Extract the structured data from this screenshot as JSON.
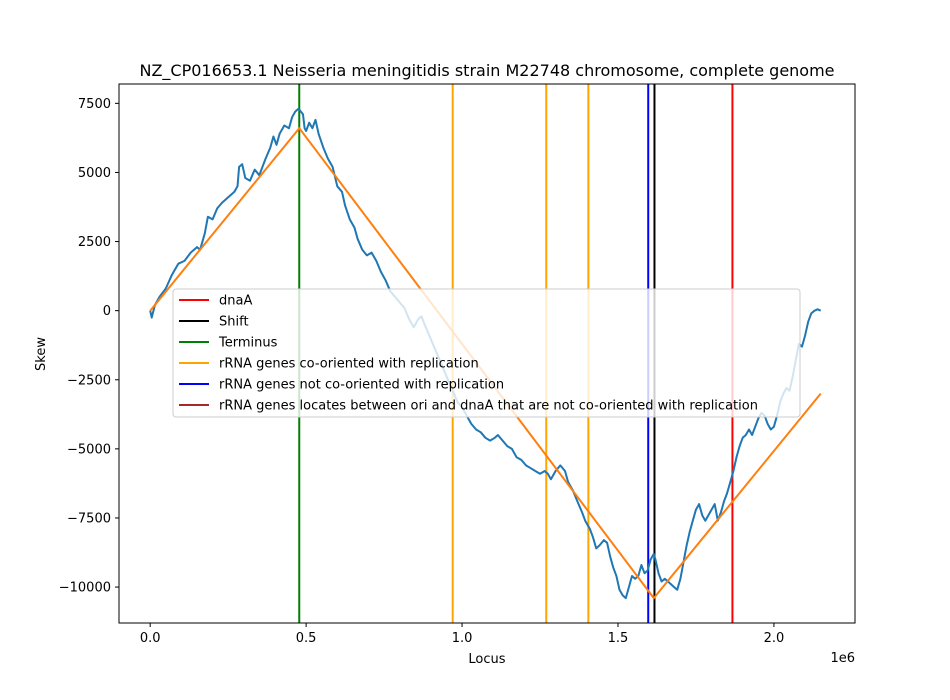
{
  "chart_data": {
    "type": "line",
    "title": "NZ_CP016653.1 Neisseria meningitidis strain M22748 chromosome, complete genome",
    "xlabel": "Locus",
    "ylabel": "Skew",
    "x_offset_text": "1e6",
    "xlim": [
      -100000,
      2260000
    ],
    "ylim": [
      -11300,
      8200
    ],
    "x_ticks": [
      {
        "value": 0,
        "label": "0.0"
      },
      {
        "value": 500000,
        "label": "0.5"
      },
      {
        "value": 1000000,
        "label": "1.0"
      },
      {
        "value": 1500000,
        "label": "1.5"
      },
      {
        "value": 2000000,
        "label": "2.0"
      }
    ],
    "y_ticks": [
      {
        "value": 7500,
        "label": "7500"
      },
      {
        "value": 5000,
        "label": "5000"
      },
      {
        "value": 2500,
        "label": "2500"
      },
      {
        "value": 0,
        "label": "0"
      },
      {
        "value": -2500,
        "label": "−2500"
      },
      {
        "value": -5000,
        "label": "−5000"
      },
      {
        "value": -7500,
        "label": "−7500"
      },
      {
        "value": -10000,
        "label": "−10000"
      }
    ],
    "grid": false,
    "legend_position": "center-right",
    "series": [
      {
        "name": "",
        "color": "#1f77b4",
        "points": [
          [
            0,
            0
          ],
          [
            5000,
            -250
          ],
          [
            15000,
            200
          ],
          [
            30000,
            500
          ],
          [
            50000,
            800
          ],
          [
            70000,
            1300
          ],
          [
            90000,
            1700
          ],
          [
            110000,
            1800
          ],
          [
            130000,
            2100
          ],
          [
            150000,
            2300
          ],
          [
            160000,
            2200
          ],
          [
            175000,
            2800
          ],
          [
            185000,
            3400
          ],
          [
            200000,
            3300
          ],
          [
            215000,
            3700
          ],
          [
            230000,
            3900
          ],
          [
            250000,
            4100
          ],
          [
            270000,
            4300
          ],
          [
            280000,
            4500
          ],
          [
            285000,
            5200
          ],
          [
            295000,
            5300
          ],
          [
            305000,
            4800
          ],
          [
            320000,
            4700
          ],
          [
            335000,
            5100
          ],
          [
            350000,
            4900
          ],
          [
            370000,
            5500
          ],
          [
            385000,
            5900
          ],
          [
            395000,
            6300
          ],
          [
            405000,
            6000
          ],
          [
            415000,
            6400
          ],
          [
            430000,
            6700
          ],
          [
            445000,
            6600
          ],
          [
            455000,
            7000
          ],
          [
            465000,
            7200
          ],
          [
            475000,
            7300
          ],
          [
            480000,
            7250
          ],
          [
            490000,
            7100
          ],
          [
            495000,
            6600
          ],
          [
            500000,
            6500
          ],
          [
            510000,
            6800
          ],
          [
            520000,
            6600
          ],
          [
            530000,
            6900
          ],
          [
            540000,
            6400
          ],
          [
            555000,
            5900
          ],
          [
            570000,
            5500
          ],
          [
            585000,
            5200
          ],
          [
            600000,
            4500
          ],
          [
            615000,
            4300
          ],
          [
            625000,
            3800
          ],
          [
            640000,
            3300
          ],
          [
            655000,
            3000
          ],
          [
            665000,
            2600
          ],
          [
            680000,
            2200
          ],
          [
            695000,
            2000
          ],
          [
            710000,
            2100
          ],
          [
            725000,
            1800
          ],
          [
            740000,
            1400
          ],
          [
            755000,
            1100
          ],
          [
            770000,
            700
          ],
          [
            785000,
            500
          ],
          [
            800000,
            300
          ],
          [
            815000,
            100
          ],
          [
            830000,
            -300
          ],
          [
            845000,
            -600
          ],
          [
            860000,
            -300
          ],
          [
            870000,
            -200
          ],
          [
            880000,
            -500
          ],
          [
            895000,
            -900
          ],
          [
            910000,
            -1300
          ],
          [
            925000,
            -1700
          ],
          [
            940000,
            -2100
          ],
          [
            955000,
            -2500
          ],
          [
            970000,
            -2900
          ],
          [
            985000,
            -3300
          ],
          [
            1000000,
            -3500
          ],
          [
            1015000,
            -3800
          ],
          [
            1030000,
            -4100
          ],
          [
            1045000,
            -4300
          ],
          [
            1060000,
            -4400
          ],
          [
            1075000,
            -4600
          ],
          [
            1090000,
            -4700
          ],
          [
            1105000,
            -4600
          ],
          [
            1115000,
            -4500
          ],
          [
            1130000,
            -4700
          ],
          [
            1145000,
            -4900
          ],
          [
            1160000,
            -5000
          ],
          [
            1175000,
            -5300
          ],
          [
            1190000,
            -5400
          ],
          [
            1205000,
            -5600
          ],
          [
            1220000,
            -5700
          ],
          [
            1235000,
            -5800
          ],
          [
            1250000,
            -5900
          ],
          [
            1265000,
            -5800
          ],
          [
            1275000,
            -5900
          ],
          [
            1285000,
            -6100
          ],
          [
            1300000,
            -5800
          ],
          [
            1315000,
            -5600
          ],
          [
            1330000,
            -5800
          ],
          [
            1340000,
            -6200
          ],
          [
            1355000,
            -6500
          ],
          [
            1370000,
            -6900
          ],
          [
            1385000,
            -7300
          ],
          [
            1395000,
            -7600
          ],
          [
            1410000,
            -7900
          ],
          [
            1420000,
            -8200
          ],
          [
            1430000,
            -8600
          ],
          [
            1440000,
            -8500
          ],
          [
            1455000,
            -8300
          ],
          [
            1465000,
            -8400
          ],
          [
            1475000,
            -8900
          ],
          [
            1485000,
            -9300
          ],
          [
            1495000,
            -9600
          ],
          [
            1505000,
            -10100
          ],
          [
            1515000,
            -10300
          ],
          [
            1525000,
            -10400
          ],
          [
            1535000,
            -10000
          ],
          [
            1545000,
            -9600
          ],
          [
            1555000,
            -9700
          ],
          [
            1565000,
            -9600
          ],
          [
            1575000,
            -9200
          ],
          [
            1585000,
            -9500
          ],
          [
            1595000,
            -9400
          ],
          [
            1605000,
            -9000
          ],
          [
            1615000,
            -8800
          ],
          [
            1620000,
            -9000
          ],
          [
            1630000,
            -9500
          ],
          [
            1640000,
            -9800
          ],
          [
            1650000,
            -9700
          ],
          [
            1660000,
            -9800
          ],
          [
            1670000,
            -9900
          ],
          [
            1680000,
            -10000
          ],
          [
            1690000,
            -10100
          ],
          [
            1700000,
            -9700
          ],
          [
            1710000,
            -9100
          ],
          [
            1720000,
            -8500
          ],
          [
            1730000,
            -8000
          ],
          [
            1740000,
            -7600
          ],
          [
            1750000,
            -7200
          ],
          [
            1760000,
            -7000
          ],
          [
            1770000,
            -7400
          ],
          [
            1780000,
            -7600
          ],
          [
            1790000,
            -7400
          ],
          [
            1800000,
            -7200
          ],
          [
            1810000,
            -7000
          ],
          [
            1820000,
            -7600
          ],
          [
            1830000,
            -7300
          ],
          [
            1840000,
            -6900
          ],
          [
            1850000,
            -6600
          ],
          [
            1860000,
            -6200
          ],
          [
            1870000,
            -5800
          ],
          [
            1880000,
            -5300
          ],
          [
            1890000,
            -4900
          ],
          [
            1900000,
            -4600
          ],
          [
            1910000,
            -4500
          ],
          [
            1920000,
            -4300
          ],
          [
            1930000,
            -4500
          ],
          [
            1940000,
            -4200
          ],
          [
            1950000,
            -3900
          ],
          [
            1960000,
            -3700
          ],
          [
            1970000,
            -3800
          ],
          [
            1980000,
            -4100
          ],
          [
            1990000,
            -4300
          ],
          [
            2000000,
            -4200
          ],
          [
            2010000,
            -3800
          ],
          [
            2020000,
            -3300
          ],
          [
            2030000,
            -3000
          ],
          [
            2040000,
            -2800
          ],
          [
            2050000,
            -2900
          ],
          [
            2060000,
            -2400
          ],
          [
            2070000,
            -1800
          ],
          [
            2080000,
            -1200
          ],
          [
            2090000,
            -1300
          ],
          [
            2100000,
            -900
          ],
          [
            2110000,
            -400
          ],
          [
            2120000,
            -100
          ],
          [
            2130000,
            0
          ],
          [
            2140000,
            50
          ],
          [
            2150000,
            0
          ]
        ]
      },
      {
        "name": "",
        "color": "#ff7f0e",
        "points": [
          [
            0,
            0
          ],
          [
            478000,
            6600
          ],
          [
            1615000,
            -10400
          ],
          [
            2150000,
            -3000
          ]
        ]
      }
    ],
    "vlines": [
      {
        "x": 478000,
        "color": "#008000"
      },
      {
        "x": 970000,
        "color": "#ffa500"
      },
      {
        "x": 1270000,
        "color": "#ffa500"
      },
      {
        "x": 1405000,
        "color": "#ffa500"
      },
      {
        "x": 1597000,
        "color": "#0000ff"
      },
      {
        "x": 1617000,
        "color": "#000000"
      },
      {
        "x": 1867000,
        "color": "#ff0000"
      }
    ],
    "legend": [
      {
        "label": "dnaA",
        "color": "#ff0000"
      },
      {
        "label": "Shift",
        "color": "#000000"
      },
      {
        "label": "Terminus",
        "color": "#008000"
      },
      {
        "label": "rRNA genes co-oriented with replication",
        "color": "#ffa500"
      },
      {
        "label": "rRNA genes not co-oriented with replication",
        "color": "#0000ff"
      },
      {
        "label": "rRNA genes locates between ori and dnaA that are not co-oriented with replication",
        "color": "#a52a2a"
      }
    ]
  }
}
